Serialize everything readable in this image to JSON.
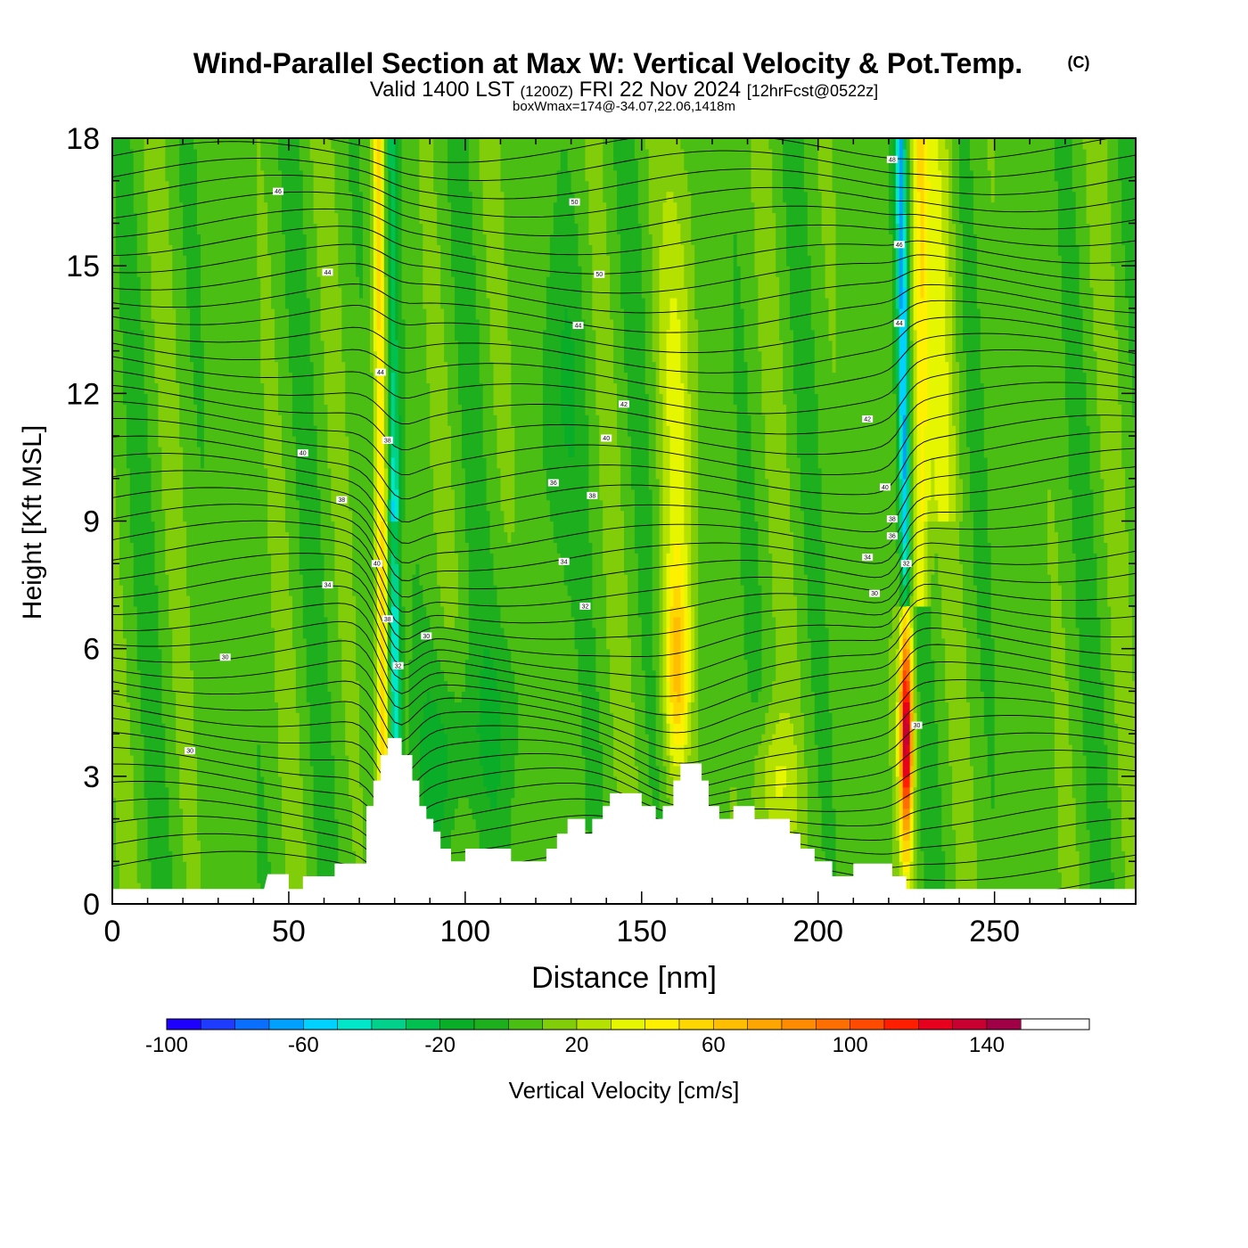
{
  "header": {
    "title": "Wind-Parallel Section at Max W: Vertical Velocity & Pot.Temp.",
    "copyright": "(C)",
    "valid_main": "Valid 1400 LST",
    "valid_zulu": "(1200Z)",
    "valid_date": "FRI 22 Nov 2024",
    "forecast": "[12hrFcst@0522z]",
    "boxmax": "boxWmax=174@-34.07,22.06,1418m"
  },
  "chart_data": {
    "type": "heatmap",
    "xlabel": "Distance [nm]",
    "ylabel": "Height [Kft MSL]",
    "xlim": [
      0,
      290
    ],
    "ylim": [
      0,
      18
    ],
    "x_ticks": [
      0,
      50,
      100,
      150,
      200,
      250
    ],
    "y_ticks": [
      0,
      3,
      6,
      9,
      12,
      15,
      18
    ],
    "colorbar": {
      "label": "Vertical Velocity [cm/s]",
      "range": [
        -100,
        170
      ],
      "tick_values": [
        -100,
        -60,
        -20,
        20,
        60,
        100,
        140
      ],
      "colors": [
        "#1e00ff",
        "#1e3cff",
        "#0a6eff",
        "#00a0ff",
        "#00d2ff",
        "#00e6c8",
        "#00d28c",
        "#00c050",
        "#0aad28",
        "#1eaf1e",
        "#4bbe14",
        "#82cd0a",
        "#b4e100",
        "#e6f500",
        "#fff000",
        "#ffd700",
        "#ffbe00",
        "#ffa500",
        "#ff8c00",
        "#ff6e00",
        "#ff4b00",
        "#ff1e00",
        "#e6001e",
        "#c80032",
        "#a00046"
      ]
    },
    "terrain": [
      [
        0,
        0.35
      ],
      [
        43,
        0.35
      ],
      [
        44,
        0.7
      ],
      [
        50,
        0.7
      ],
      [
        50,
        0.35
      ],
      [
        54,
        0.35
      ],
      [
        54,
        0.65
      ],
      [
        63,
        0.65
      ],
      [
        63,
        0.95
      ],
      [
        72,
        0.95
      ],
      [
        72,
        2.3
      ],
      [
        74,
        2.3
      ],
      [
        74,
        2.9
      ],
      [
        76,
        2.9
      ],
      [
        76,
        3.5
      ],
      [
        78,
        3.5
      ],
      [
        78,
        3.9
      ],
      [
        82,
        3.9
      ],
      [
        82,
        3.5
      ],
      [
        85,
        3.5
      ],
      [
        85,
        2.9
      ],
      [
        87,
        2.9
      ],
      [
        87,
        2.3
      ],
      [
        89,
        2.3
      ],
      [
        89,
        2.0
      ],
      [
        91,
        2.0
      ],
      [
        91,
        1.7
      ],
      [
        93,
        1.7
      ],
      [
        93,
        1.3
      ],
      [
        96,
        1.3
      ],
      [
        96,
        1.0
      ],
      [
        100,
        1.0
      ],
      [
        100,
        1.3
      ],
      [
        113,
        1.3
      ],
      [
        113,
        1.0
      ],
      [
        123,
        1.0
      ],
      [
        123,
        1.3
      ],
      [
        126,
        1.3
      ],
      [
        126,
        1.65
      ],
      [
        129,
        1.65
      ],
      [
        129,
        2.0
      ],
      [
        134,
        2.0
      ],
      [
        134,
        1.65
      ],
      [
        136,
        1.65
      ],
      [
        136,
        2.0
      ],
      [
        139,
        2.0
      ],
      [
        139,
        2.3
      ],
      [
        141,
        2.3
      ],
      [
        141,
        2.6
      ],
      [
        150,
        2.6
      ],
      [
        150,
        2.3
      ],
      [
        154,
        2.3
      ],
      [
        154,
        2.0
      ],
      [
        156,
        2.0
      ],
      [
        156,
        2.3
      ],
      [
        159,
        2.3
      ],
      [
        159,
        2.9
      ],
      [
        161,
        2.9
      ],
      [
        161,
        3.3
      ],
      [
        167,
        3.3
      ],
      [
        167,
        2.9
      ],
      [
        169,
        2.9
      ],
      [
        169,
        2.3
      ],
      [
        172,
        2.3
      ],
      [
        172,
        2.0
      ],
      [
        176,
        2.0
      ],
      [
        176,
        2.3
      ],
      [
        182,
        2.3
      ],
      [
        182,
        2.0
      ],
      [
        192,
        2.0
      ],
      [
        192,
        1.65
      ],
      [
        195,
        1.65
      ],
      [
        195,
        1.3
      ],
      [
        199,
        1.3
      ],
      [
        199,
        1.0
      ],
      [
        204,
        1.0
      ],
      [
        204,
        0.65
      ],
      [
        210,
        0.65
      ],
      [
        210,
        0.95
      ],
      [
        221,
        0.95
      ],
      [
        221,
        0.65
      ],
      [
        225,
        0.65
      ],
      [
        225,
        0.35
      ],
      [
        290,
        0.35
      ]
    ],
    "theta_labels": [
      {
        "x": 47,
        "y": 16.75,
        "text": "46"
      },
      {
        "x": 131,
        "y": 16.5,
        "text": "50"
      },
      {
        "x": 221,
        "y": 17.5,
        "text": "48"
      },
      {
        "x": 61,
        "y": 14.85,
        "text": "44"
      },
      {
        "x": 138,
        "y": 14.8,
        "text": "50"
      },
      {
        "x": 223,
        "y": 15.5,
        "text": "46"
      },
      {
        "x": 132,
        "y": 13.6,
        "text": "44"
      },
      {
        "x": 223,
        "y": 13.65,
        "text": "44"
      },
      {
        "x": 76,
        "y": 12.5,
        "text": "44"
      },
      {
        "x": 145,
        "y": 11.75,
        "text": "42"
      },
      {
        "x": 214,
        "y": 11.4,
        "text": "42"
      },
      {
        "x": 78,
        "y": 10.9,
        "text": "38"
      },
      {
        "x": 140,
        "y": 10.95,
        "text": "40"
      },
      {
        "x": 54,
        "y": 10.6,
        "text": "40"
      },
      {
        "x": 125,
        "y": 9.9,
        "text": "36"
      },
      {
        "x": 136,
        "y": 9.6,
        "text": "38"
      },
      {
        "x": 65,
        "y": 9.5,
        "text": "38"
      },
      {
        "x": 219,
        "y": 9.8,
        "text": "40"
      },
      {
        "x": 221,
        "y": 9.05,
        "text": "38"
      },
      {
        "x": 221,
        "y": 8.65,
        "text": "36"
      },
      {
        "x": 75,
        "y": 8.0,
        "text": "40"
      },
      {
        "x": 128,
        "y": 8.05,
        "text": "34"
      },
      {
        "x": 214,
        "y": 8.15,
        "text": "34"
      },
      {
        "x": 61,
        "y": 7.5,
        "text": "34"
      },
      {
        "x": 134,
        "y": 7.0,
        "text": "32"
      },
      {
        "x": 216,
        "y": 7.3,
        "text": "30"
      },
      {
        "x": 78,
        "y": 6.7,
        "text": "38"
      },
      {
        "x": 89,
        "y": 6.3,
        "text": "30"
      },
      {
        "x": 225,
        "y": 8.0,
        "text": "32"
      },
      {
        "x": 32,
        "y": 5.8,
        "text": "30"
      },
      {
        "x": 81,
        "y": 5.6,
        "text": "32"
      },
      {
        "x": 22,
        "y": 3.6,
        "text": "30"
      },
      {
        "x": 228,
        "y": 4.2,
        "text": "30"
      }
    ]
  }
}
